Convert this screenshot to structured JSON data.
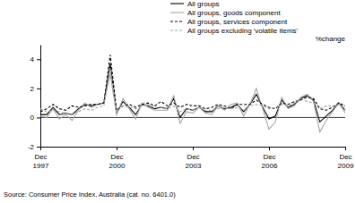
{
  "chart_data": {
    "type": "line",
    "y_label": "%change",
    "source": "Source: Consumer Price Index, Australia (cat. no. 6401.0)",
    "categories": [
      "Dec 1997",
      null,
      null,
      null,
      null,
      null,
      null,
      null,
      null,
      null,
      null,
      null,
      "Dec 2000",
      null,
      null,
      null,
      null,
      null,
      null,
      null,
      null,
      null,
      null,
      null,
      "Dec 2003",
      null,
      null,
      null,
      null,
      null,
      null,
      null,
      null,
      null,
      null,
      null,
      "Dec 2006",
      null,
      null,
      null,
      null,
      null,
      null,
      null,
      null,
      null,
      null,
      null,
      "Dec 2009"
    ],
    "series": [
      {
        "name": "All groups",
        "color": "#000000",
        "line_style": "solid",
        "values": [
          0.2,
          0.2,
          0.7,
          0.2,
          0.3,
          0.2,
          0.6,
          0.9,
          0.8,
          0.9,
          1.0,
          3.7,
          0.3,
          1.1,
          0.7,
          0.2,
          0.9,
          0.8,
          0.6,
          0.7,
          0.6,
          1.3,
          0.0,
          0.6,
          0.5,
          0.7,
          0.4,
          0.4,
          0.8,
          0.6,
          0.7,
          0.9,
          0.4,
          0.9,
          1.6,
          0.7,
          -0.1,
          0.1,
          1.2,
          0.7,
          0.9,
          1.3,
          1.5,
          1.2,
          -0.3,
          0.1,
          0.5,
          1.0,
          0.5
        ]
      },
      {
        "name": "All groups, goods component",
        "color": "#a6a6a6",
        "line_style": "solid",
        "values": [
          0.1,
          0.0,
          0.6,
          -0.1,
          0.2,
          -0.2,
          0.5,
          1.0,
          0.7,
          0.9,
          1.0,
          3.0,
          0.2,
          1.3,
          0.6,
          -0.1,
          1.0,
          0.7,
          0.5,
          0.5,
          0.5,
          1.5,
          -0.4,
          0.4,
          0.3,
          0.7,
          0.3,
          0.2,
          0.8,
          0.5,
          0.9,
          1.0,
          0.1,
          0.9,
          2.0,
          0.6,
          -0.8,
          -0.3,
          1.4,
          0.6,
          0.8,
          1.4,
          1.6,
          1.1,
          -1.0,
          -0.2,
          0.4,
          1.0,
          0.3
        ]
      },
      {
        "name": "All groups, services component",
        "color": "#000000",
        "line_style": "dashed",
        "values": [
          0.4,
          0.6,
          0.9,
          0.6,
          0.5,
          0.8,
          0.7,
          0.8,
          0.9,
          0.9,
          1.0,
          4.3,
          0.5,
          0.8,
          0.9,
          0.7,
          0.9,
          1.0,
          0.8,
          1.1,
          0.8,
          1.0,
          0.7,
          0.9,
          0.8,
          0.8,
          0.6,
          0.7,
          0.9,
          0.8,
          0.6,
          0.9,
          0.9,
          0.9,
          1.2,
          0.9,
          0.7,
          0.6,
          1.0,
          0.9,
          1.1,
          1.2,
          1.4,
          1.3,
          0.6,
          0.5,
          0.7,
          1.0,
          0.8
        ]
      },
      {
        "name": "All groups excluding 'volatile items'",
        "color": "#a6a6a6",
        "line_style": "dashed",
        "values": [
          0.6,
          0.4,
          0.5,
          0.4,
          0.3,
          0.2,
          0.4,
          0.6,
          0.5,
          0.7,
          0.8,
          3.4,
          0.4,
          0.8,
          0.7,
          0.6,
          0.8,
          0.9,
          0.7,
          0.7,
          0.6,
          0.8,
          0.4,
          0.6,
          0.5,
          0.7,
          0.5,
          0.5,
          0.6,
          0.7,
          0.6,
          0.7,
          0.5,
          0.8,
          0.9,
          0.8,
          0.6,
          0.7,
          0.9,
          0.8,
          1.0,
          1.3,
          1.1,
          1.0,
          0.6,
          0.8,
          0.8,
          0.9,
          0.5
        ]
      }
    ],
    "ylim": [
      -2,
      5
    ],
    "yticks": [
      -2,
      0,
      2,
      4
    ],
    "grid": false,
    "legend": "top-right"
  }
}
